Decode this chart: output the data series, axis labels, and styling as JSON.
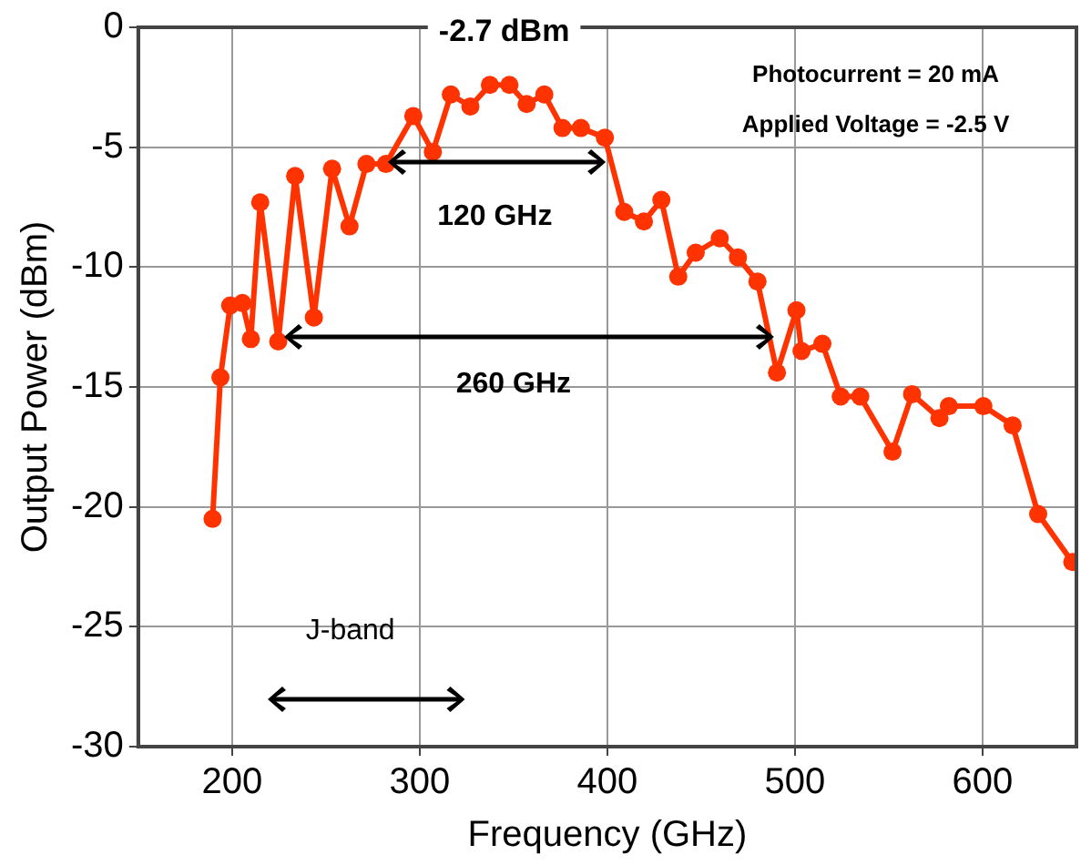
{
  "chart_data": {
    "type": "line",
    "xlabel": "Frequency (GHz)",
    "ylabel": "Output Power (dBm)",
    "x": [
      189.6,
      193.8,
      199,
      205.5,
      210,
      215,
      224.6,
      233.6,
      243.6,
      253.3,
      262.6,
      271.6,
      282,
      296.6,
      307,
      316.6,
      327,
      337.4,
      347.8,
      357,
      366.4,
      376.1,
      385.9,
      398.7,
      409,
      419.5,
      428.8,
      437.8,
      447.1,
      459.9,
      469.6,
      480,
      490.4,
      500.8,
      503.5,
      514.6,
      524.4,
      534.8,
      552,
      562.4,
      577,
      582,
      600.4,
      616,
      629.6,
      647.8
    ],
    "series": [
      {
        "color": "#ff3300",
        "values": [
          -20.5,
          -14.6,
          -11.6,
          -11.5,
          -13.0,
          -7.3,
          -13.1,
          -6.2,
          -12.1,
          -5.9,
          -8.3,
          -5.7,
          -5.7,
          -3.7,
          -5.2,
          -2.8,
          -3.3,
          -2.4,
          -2.4,
          -3.2,
          -2.8,
          -4.2,
          -4.2,
          -4.6,
          -7.7,
          -8.1,
          -7.2,
          -10.4,
          -9.4,
          -8.8,
          -9.6,
          -10.6,
          -14.4,
          -11.8,
          -13.5,
          -13.2,
          -15.4,
          -15.4,
          -17.7,
          -15.3,
          -16.3,
          -15.8,
          -15.8,
          -16.6,
          -20.3,
          -22.3
        ]
      }
    ],
    "xlim": [
      150,
      650
    ],
    "xticks": [
      200,
      300,
      400,
      500,
      600
    ],
    "ylim": [
      -30,
      0
    ],
    "yticks": [
      -30,
      -25,
      -20,
      -15,
      -10,
      -5,
      0
    ],
    "grid": true,
    "legend": false,
    "marker": "circle",
    "line_style": "solid",
    "annotations": [
      "-2.7 dBm",
      "Photocurrent = 20 mA",
      "Applied Voltage = -2.5 V",
      "120 GHz",
      "260 GHz",
      "J-band"
    ]
  }
}
